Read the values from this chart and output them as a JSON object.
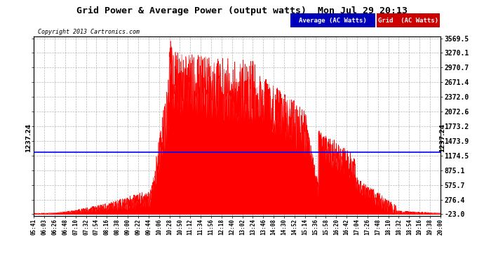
{
  "title": "Grid Power & Average Power (output watts)  Mon Jul 29 20:13",
  "copyright": "Copyright 2013 Cartronics.com",
  "average_value": 1237.24,
  "ymin": -23.0,
  "ymax": 3569.5,
  "yticks": [
    3569.5,
    3270.1,
    2970.7,
    2671.4,
    2372.0,
    2072.6,
    1773.2,
    1473.9,
    1174.5,
    875.1,
    575.7,
    276.4,
    -23.0
  ],
  "ytick_labels_right": [
    "3569.5",
    "3270.1",
    "2970.7",
    "2671.4",
    "2372.0",
    "2072.6",
    "1773.2",
    "1473.9",
    "1174.5",
    "875.1",
    "575.7",
    "276.4",
    "-23.0"
  ],
  "xtick_labels": [
    "05:41",
    "06:03",
    "06:26",
    "06:48",
    "07:10",
    "07:32",
    "07:54",
    "08:16",
    "08:38",
    "09:00",
    "09:22",
    "09:44",
    "10:06",
    "10:28",
    "10:50",
    "11:12",
    "11:34",
    "11:56",
    "12:18",
    "12:40",
    "13:02",
    "13:24",
    "13:46",
    "14:08",
    "14:30",
    "14:52",
    "15:14",
    "15:36",
    "15:58",
    "16:20",
    "16:42",
    "17:04",
    "17:26",
    "17:48",
    "18:10",
    "18:32",
    "18:54",
    "19:16",
    "19:38",
    "20:00"
  ],
  "bg_color": "#ffffff",
  "grid_color": "#888888",
  "fill_color": "#ff0000",
  "avg_line_color": "#0000ff",
  "legend_avg_bg": "#0000bb",
  "legend_grid_bg": "#cc0000",
  "avg_label": "Average (AC Watts)",
  "grid_label": "Grid  (AC Watts)"
}
